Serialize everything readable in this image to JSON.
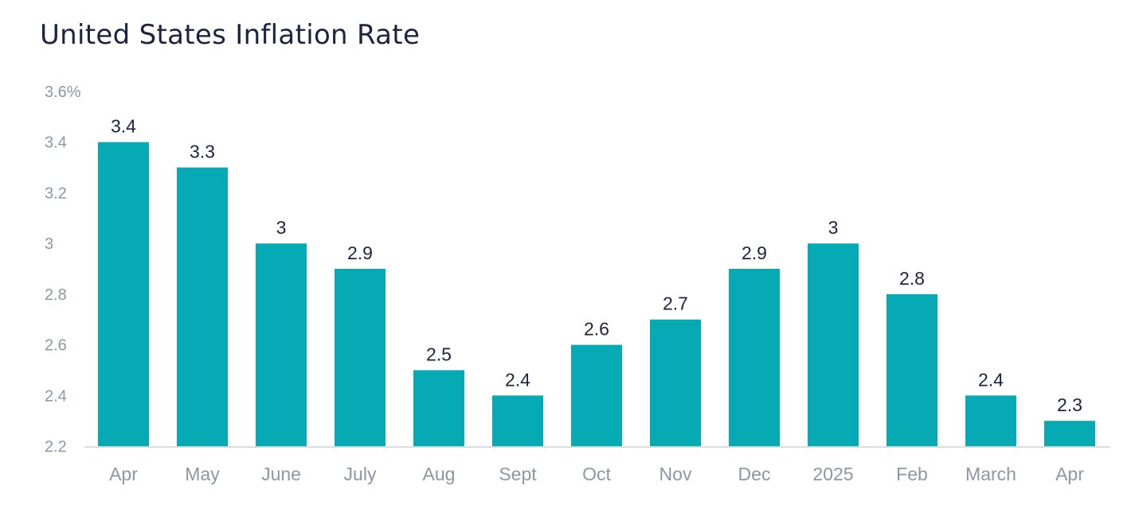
{
  "chart_data": {
    "type": "bar",
    "title": "United States Inflation Rate",
    "xlabel": "",
    "ylabel": "",
    "categories": [
      "Apr",
      "May",
      "June",
      "July",
      "Aug",
      "Sept",
      "Oct",
      "Nov",
      "Dec",
      "2025",
      "Feb",
      "March",
      "Apr"
    ],
    "values": [
      3.4,
      3.3,
      3,
      2.9,
      2.5,
      2.4,
      2.6,
      2.7,
      2.9,
      3,
      2.8,
      2.4,
      2.3
    ],
    "data_labels": [
      "3.4",
      "3.3",
      "3",
      "2.9",
      "2.5",
      "2.4",
      "2.6",
      "2.7",
      "2.9",
      "3",
      "2.8",
      "2.4",
      "2.3"
    ],
    "ylim": [
      2.2,
      3.6
    ],
    "yticks": [
      2.2,
      2.4,
      2.6,
      2.8,
      3,
      3.2,
      3.4,
      3.6
    ],
    "ytick_labels": [
      "2.2",
      "2.4",
      "2.6",
      "2.8",
      "3",
      "3.2",
      "3.4",
      "3.6%"
    ],
    "grid": false,
    "legend": "none",
    "colors": {
      "bar": "#05aab5",
      "axis": "#d9dde2",
      "title": "#1b2440",
      "tick_text": "#8d97a3",
      "data_label_text": "#1b2440"
    }
  }
}
